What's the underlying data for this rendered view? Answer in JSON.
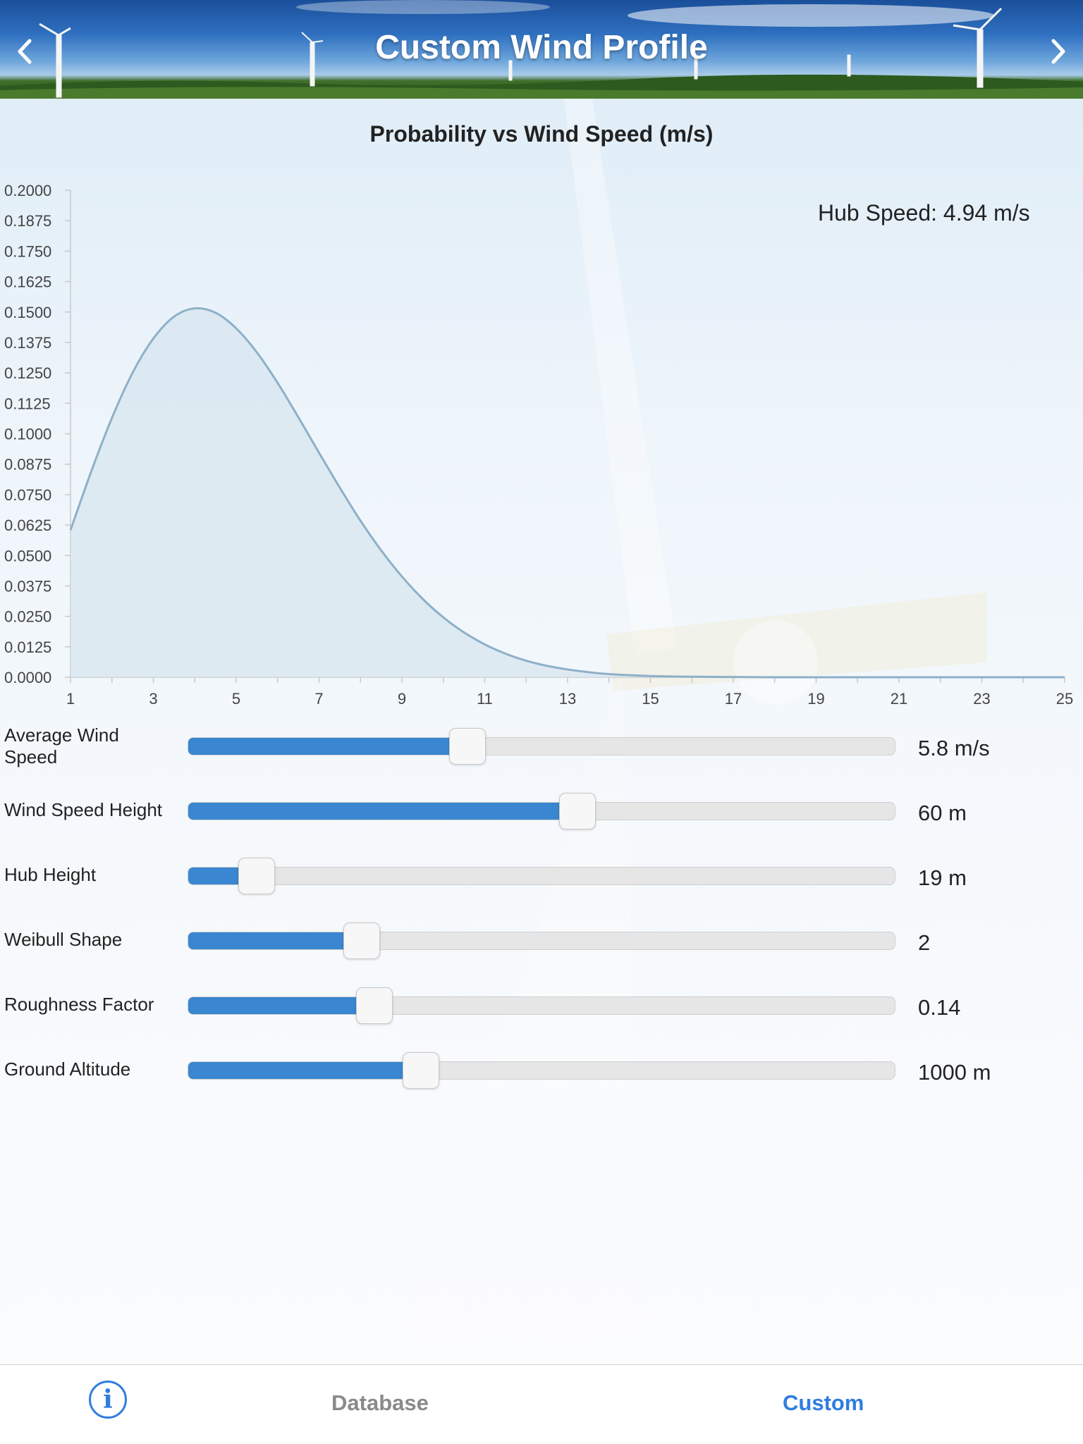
{
  "header": {
    "title": "Custom Wind Profile",
    "back_icon": "chevron-left-icon",
    "forward_icon": "chevron-right-icon"
  },
  "chart_data": {
    "type": "area",
    "title": "Probability vs Wind Speed (m/s)",
    "xlabel": "",
    "ylabel": "",
    "xlim": [
      1,
      25
    ],
    "ylim": [
      0,
      0.2
    ],
    "x_ticks": [
      "1",
      "3",
      "5",
      "7",
      "9",
      "11",
      "13",
      "15",
      "17",
      "19",
      "21",
      "23",
      "25"
    ],
    "y_ticks": [
      "0.0000",
      "0.0125",
      "0.0250",
      "0.0375",
      "0.0500",
      "0.0625",
      "0.0750",
      "0.0875",
      "0.1000",
      "0.1125",
      "0.1250",
      "0.1375",
      "0.1500",
      "0.1625",
      "0.1750",
      "0.1875",
      "0.2000"
    ],
    "series": [
      {
        "x": [
          1,
          1.5,
          2,
          2.5,
          3,
          3.5,
          4,
          4.5,
          5,
          5.5,
          6,
          6.5,
          7,
          7.5,
          8,
          8.5,
          9,
          9.5,
          10,
          10.5,
          11,
          11.5,
          12,
          12.5,
          13,
          13.5,
          14,
          15,
          16,
          17,
          18,
          19,
          20,
          21,
          22,
          23,
          24,
          25
        ],
        "values": [
          0.0604,
          0.0845,
          0.1065,
          0.1251,
          0.1391,
          0.1481,
          0.1515,
          0.1497,
          0.1433,
          0.1334,
          0.1209,
          0.1068,
          0.0922,
          0.0779,
          0.0643,
          0.0521,
          0.0414,
          0.0322,
          0.0246,
          0.0184,
          0.0135,
          0.0097,
          0.0068,
          0.0047,
          0.0032,
          0.0021,
          0.0013,
          0.0005,
          0.0002,
          0.0001,
          0,
          0,
          0,
          0,
          0,
          0,
          0,
          0
        ]
      }
    ],
    "line_color": "#8db0c8",
    "fill_color": "#d7e6ef",
    "grid": false,
    "annotation": "Hub Speed: 4.94 m/s"
  },
  "sliders": [
    {
      "label": "Average Wind Speed",
      "value": "5.8 m/s",
      "fraction": 0.395
    },
    {
      "label": "Wind Speed Height",
      "value": "60 m",
      "fraction": 0.551
    },
    {
      "label": "Hub Height",
      "value": "19 m",
      "fraction": 0.097
    },
    {
      "label": "Weibull Shape",
      "value": "2",
      "fraction": 0.246
    },
    {
      "label": "Roughness Factor",
      "value": "0.14",
      "fraction": 0.263
    },
    {
      "label": "Ground Altitude",
      "value": "1000 m",
      "fraction": 0.329
    }
  ],
  "tabs": {
    "info_icon": "info-icon",
    "database": "Database",
    "custom": "Custom",
    "active": "Custom",
    "active_color": "#2f7de0",
    "inactive_color": "#8a8a8a"
  },
  "colors": {
    "slider_fill": "#3a86d0",
    "slider_track": "#e6e6e6"
  }
}
